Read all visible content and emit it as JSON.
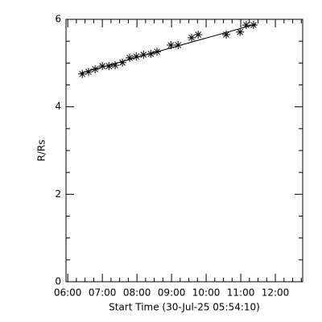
{
  "chart_data": {
    "type": "scatter",
    "xlabel": "Start Time (30-Jul-25 05:54:10)",
    "ylabel": "R/Rs",
    "series": [
      {
        "color": "#000000",
        "x": [
          6.42,
          6.6,
          6.79,
          7.0,
          7.19,
          7.37,
          7.58,
          7.79,
          7.98,
          8.19,
          8.4,
          8.58,
          8.98,
          9.19,
          9.58,
          9.77,
          10.58,
          10.98,
          11.16,
          11.37
        ],
        "values": [
          4.75,
          4.8,
          4.86,
          4.93,
          4.93,
          4.95,
          5.01,
          5.12,
          5.15,
          5.19,
          5.21,
          5.26,
          5.41,
          5.41,
          5.58,
          5.65,
          5.65,
          5.71,
          5.87,
          5.87
        ]
      }
    ],
    "fit": {
      "color": "#000000",
      "x": [
        6.37,
        11.44
      ],
      "values": [
        4.77,
        5.89
      ]
    },
    "xlim": [
      5.95,
      12.79
    ],
    "xticks": [
      {
        "value": 6,
        "label": "06:00"
      },
      {
        "value": 7,
        "label": "07:00"
      },
      {
        "value": 8,
        "label": "08:00"
      },
      {
        "value": 9,
        "label": "09:00"
      },
      {
        "value": 10,
        "label": "10:00"
      },
      {
        "value": 11,
        "label": "11:00"
      },
      {
        "value": 12,
        "label": "12:00"
      }
    ],
    "ylim": [
      0,
      6
    ],
    "yticks": [
      0,
      2,
      4,
      6
    ]
  }
}
